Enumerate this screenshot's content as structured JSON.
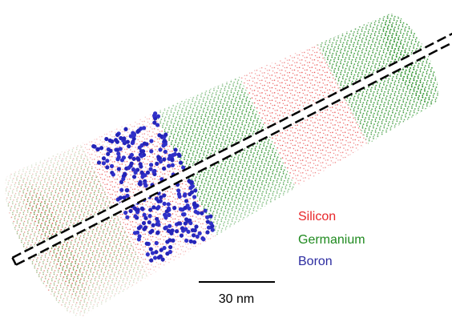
{
  "legend": {
    "items": [
      "Silicon",
      "Germanium",
      "Boron"
    ]
  },
  "scale_bar": {
    "label": "30 nm"
  }
}
